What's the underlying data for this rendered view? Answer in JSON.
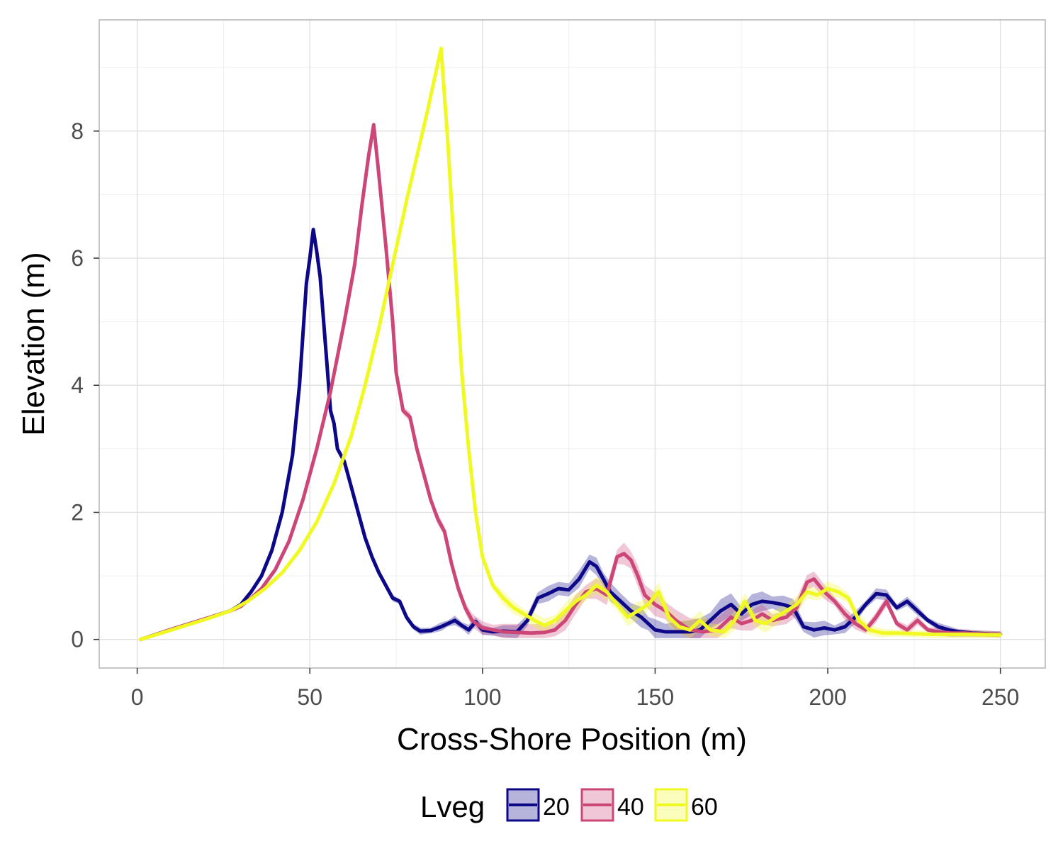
{
  "chart_data": {
    "type": "line",
    "xlabel": "Cross-Shore Position (m)",
    "ylabel": "Elevation (m)",
    "xlim": [
      -11,
      263
    ],
    "ylim": [
      -0.45,
      9.75
    ],
    "x_ticks": [
      0,
      50,
      100,
      150,
      200,
      250
    ],
    "y_ticks": [
      0,
      2,
      4,
      6,
      8
    ],
    "x_tick_labels": [
      "0",
      "50",
      "100",
      "150",
      "200",
      "250"
    ],
    "y_tick_labels": [
      "0",
      "2",
      "4",
      "6",
      "8"
    ],
    "grid": true,
    "legend": {
      "title": "Lveg",
      "position": "bottom"
    },
    "series": [
      {
        "name": "20",
        "color": "#0d0887",
        "fill": "#0d0887",
        "points": [
          [
            1,
            0
          ],
          [
            10,
            0.16
          ],
          [
            20,
            0.33
          ],
          [
            27,
            0.45
          ],
          [
            30,
            0.55
          ],
          [
            33,
            0.75
          ],
          [
            36,
            1.0
          ],
          [
            39,
            1.4
          ],
          [
            42,
            2.0
          ],
          [
            45,
            2.9
          ],
          [
            47,
            4.0
          ],
          [
            49,
            5.6
          ],
          [
            50,
            6.0
          ],
          [
            51,
            6.45
          ],
          [
            52,
            6.1
          ],
          [
            53,
            5.7
          ],
          [
            54,
            5.0
          ],
          [
            55,
            4.3
          ],
          [
            56,
            3.6
          ],
          [
            57,
            3.4
          ],
          [
            58,
            3.0
          ],
          [
            60,
            2.8
          ],
          [
            62,
            2.4
          ],
          [
            64,
            2.0
          ],
          [
            66,
            1.6
          ],
          [
            68,
            1.3
          ],
          [
            70,
            1.05
          ],
          [
            72,
            0.85
          ],
          [
            74,
            0.65
          ],
          [
            76,
            0.6
          ],
          [
            78,
            0.35
          ],
          [
            80,
            0.2
          ],
          [
            82,
            0.13
          ],
          [
            85,
            0.14
          ],
          [
            88,
            0.2
          ],
          [
            90,
            0.25
          ],
          [
            92,
            0.3
          ],
          [
            94,
            0.22
          ],
          [
            96,
            0.15
          ],
          [
            98,
            0.28
          ],
          [
            100,
            0.15
          ],
          [
            103,
            0.12
          ],
          [
            106,
            0.13
          ],
          [
            110,
            0.12
          ],
          [
            113,
            0.3
          ],
          [
            116,
            0.65
          ],
          [
            119,
            0.72
          ],
          [
            122,
            0.8
          ],
          [
            125,
            0.78
          ],
          [
            128,
            0.95
          ],
          [
            131,
            1.22
          ],
          [
            133,
            1.15
          ],
          [
            135,
            0.95
          ],
          [
            137,
            0.75
          ],
          [
            140,
            0.6
          ],
          [
            143,
            0.45
          ],
          [
            146,
            0.35
          ],
          [
            148,
            0.25
          ],
          [
            150,
            0.15
          ],
          [
            153,
            0.12
          ],
          [
            156,
            0.12
          ],
          [
            160,
            0.12
          ],
          [
            163,
            0.15
          ],
          [
            166,
            0.3
          ],
          [
            169,
            0.45
          ],
          [
            172,
            0.55
          ],
          [
            175,
            0.4
          ],
          [
            178,
            0.55
          ],
          [
            181,
            0.6
          ],
          [
            184,
            0.58
          ],
          [
            187,
            0.55
          ],
          [
            190,
            0.5
          ],
          [
            193,
            0.2
          ],
          [
            196,
            0.15
          ],
          [
            199,
            0.18
          ],
          [
            202,
            0.15
          ],
          [
            205,
            0.2
          ],
          [
            208,
            0.35
          ],
          [
            211,
            0.55
          ],
          [
            214,
            0.72
          ],
          [
            217,
            0.7
          ],
          [
            220,
            0.5
          ],
          [
            223,
            0.6
          ],
          [
            226,
            0.45
          ],
          [
            229,
            0.3
          ],
          [
            232,
            0.2
          ],
          [
            235,
            0.15
          ],
          [
            238,
            0.12
          ],
          [
            242,
            0.1
          ],
          [
            246,
            0.09
          ],
          [
            250,
            0.08
          ]
        ],
        "band": [
          0.04,
          0.06,
          0.09,
          0.13,
          0.16,
          0.2,
          0.15,
          0.1,
          0.07,
          0.05
        ]
      },
      {
        "name": "40",
        "color": "#cc4778",
        "fill": "#cc4778",
        "points": [
          [
            1,
            0
          ],
          [
            10,
            0.16
          ],
          [
            20,
            0.33
          ],
          [
            27,
            0.45
          ],
          [
            30,
            0.52
          ],
          [
            33,
            0.65
          ],
          [
            36,
            0.8
          ],
          [
            40,
            1.1
          ],
          [
            44,
            1.55
          ],
          [
            48,
            2.2
          ],
          [
            52,
            3.0
          ],
          [
            56,
            3.9
          ],
          [
            60,
            5.0
          ],
          [
            63,
            5.9
          ],
          [
            65,
            6.8
          ],
          [
            67,
            7.6
          ],
          [
            68.5,
            8.1
          ],
          [
            70,
            7.3
          ],
          [
            72,
            6.2
          ],
          [
            74,
            5.0
          ],
          [
            75,
            4.2
          ],
          [
            77,
            3.6
          ],
          [
            79,
            3.5
          ],
          [
            81,
            3.0
          ],
          [
            83,
            2.6
          ],
          [
            85,
            2.2
          ],
          [
            87,
            1.9
          ],
          [
            89,
            1.7
          ],
          [
            91,
            1.2
          ],
          [
            93,
            0.8
          ],
          [
            95,
            0.5
          ],
          [
            97,
            0.3
          ],
          [
            100,
            0.18
          ],
          [
            103,
            0.15
          ],
          [
            106,
            0.12
          ],
          [
            110,
            0.11
          ],
          [
            114,
            0.1
          ],
          [
            118,
            0.11
          ],
          [
            121,
            0.15
          ],
          [
            124,
            0.3
          ],
          [
            127,
            0.55
          ],
          [
            130,
            0.75
          ],
          [
            133,
            0.8
          ],
          [
            136,
            0.7
          ],
          [
            139,
            1.3
          ],
          [
            141,
            1.35
          ],
          [
            143,
            1.25
          ],
          [
            145,
            1.0
          ],
          [
            147,
            0.7
          ],
          [
            150,
            0.55
          ],
          [
            153,
            0.45
          ],
          [
            156,
            0.3
          ],
          [
            160,
            0.15
          ],
          [
            164,
            0.12
          ],
          [
            168,
            0.15
          ],
          [
            172,
            0.35
          ],
          [
            175,
            0.25
          ],
          [
            178,
            0.3
          ],
          [
            181,
            0.4
          ],
          [
            184,
            0.3
          ],
          [
            188,
            0.35
          ],
          [
            191,
            0.5
          ],
          [
            194,
            0.9
          ],
          [
            196,
            0.95
          ],
          [
            199,
            0.75
          ],
          [
            202,
            0.6
          ],
          [
            205,
            0.4
          ],
          [
            208,
            0.25
          ],
          [
            211,
            0.15
          ],
          [
            214,
            0.35
          ],
          [
            217,
            0.6
          ],
          [
            220,
            0.25
          ],
          [
            223,
            0.15
          ],
          [
            226,
            0.3
          ],
          [
            229,
            0.15
          ],
          [
            232,
            0.12
          ],
          [
            236,
            0.1
          ],
          [
            240,
            0.1
          ],
          [
            244,
            0.09
          ],
          [
            250,
            0.08
          ]
        ],
        "band": [
          0.05,
          0.08,
          0.12,
          0.16,
          0.18,
          0.2,
          0.15,
          0.1,
          0.07,
          0.05
        ]
      },
      {
        "name": "60",
        "color": "#f0f921",
        "fill": "#f0f921",
        "points": [
          [
            1,
            0
          ],
          [
            10,
            0.15
          ],
          [
            20,
            0.32
          ],
          [
            27,
            0.45
          ],
          [
            32,
            0.6
          ],
          [
            37,
            0.8
          ],
          [
            42,
            1.05
          ],
          [
            47,
            1.4
          ],
          [
            52,
            1.85
          ],
          [
            57,
            2.45
          ],
          [
            62,
            3.2
          ],
          [
            66,
            4.0
          ],
          [
            70,
            4.9
          ],
          [
            74,
            5.9
          ],
          [
            78,
            6.9
          ],
          [
            81,
            7.6
          ],
          [
            84,
            8.3
          ],
          [
            86,
            8.8
          ],
          [
            88,
            9.3
          ],
          [
            90,
            7.8
          ],
          [
            92,
            6.0
          ],
          [
            94,
            4.2
          ],
          [
            96,
            3.0
          ],
          [
            98,
            2.0
          ],
          [
            100,
            1.3
          ],
          [
            103,
            0.85
          ],
          [
            106,
            0.65
          ],
          [
            109,
            0.5
          ],
          [
            112,
            0.4
          ],
          [
            115,
            0.3
          ],
          [
            118,
            0.22
          ],
          [
            121,
            0.3
          ],
          [
            124,
            0.45
          ],
          [
            127,
            0.6
          ],
          [
            130,
            0.7
          ],
          [
            133,
            0.85
          ],
          [
            136,
            0.75
          ],
          [
            139,
            0.55
          ],
          [
            142,
            0.35
          ],
          [
            145,
            0.45
          ],
          [
            148,
            0.55
          ],
          [
            151,
            0.75
          ],
          [
            154,
            0.35
          ],
          [
            157,
            0.2
          ],
          [
            160,
            0.15
          ],
          [
            163,
            0.3
          ],
          [
            166,
            0.15
          ],
          [
            170,
            0.12
          ],
          [
            173,
            0.3
          ],
          [
            176,
            0.6
          ],
          [
            179,
            0.3
          ],
          [
            182,
            0.25
          ],
          [
            185,
            0.35
          ],
          [
            188,
            0.45
          ],
          [
            191,
            0.55
          ],
          [
            194,
            0.75
          ],
          [
            197,
            0.7
          ],
          [
            200,
            0.8
          ],
          [
            203,
            0.75
          ],
          [
            206,
            0.65
          ],
          [
            209,
            0.3
          ],
          [
            212,
            0.15
          ],
          [
            216,
            0.1
          ],
          [
            220,
            0.1
          ],
          [
            225,
            0.09
          ],
          [
            230,
            0.08
          ],
          [
            240,
            0.08
          ],
          [
            250,
            0.07
          ]
        ],
        "band": [
          0.05,
          0.07,
          0.1,
          0.13,
          0.15,
          0.16,
          0.14,
          0.1,
          0.07,
          0.05
        ]
      }
    ]
  }
}
